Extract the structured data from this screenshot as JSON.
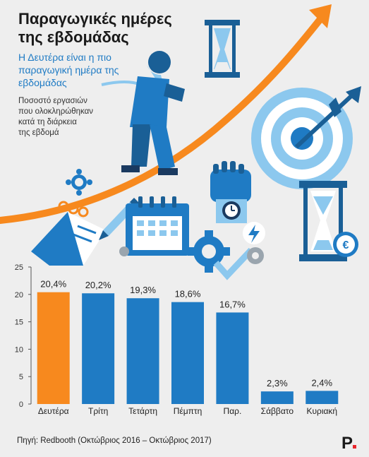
{
  "header": {
    "title_line1": "Παραγωγικές ημέρες",
    "title_line2": "της εβδομάδας",
    "subtitle_line1": "Η Δευτέρα είναι η πιο",
    "subtitle_line2": "παραγωγική ημέρα της",
    "subtitle_line3": "εβδομάδας",
    "desc_line1": "Ποσοστό εργασιών",
    "desc_line2": "που ολοκληρώθηκαν",
    "desc_line3": "κατά τη διάρκεια",
    "desc_line4": "της εβδομά"
  },
  "footer": {
    "source": "Πηγή: Redbooth (Οκτώβριος 2016 – Οκτώβριος 2017)",
    "logo_letter": "P"
  },
  "colors": {
    "highlight": "#f7891e",
    "bar": "#1f7bc4",
    "light_blue": "#8cc8ee",
    "dark_blue": "#1a5f96",
    "gray_icon": "#9aa5ae"
  },
  "illustration": {
    "icons": [
      "hourglass-icon",
      "runner-figure",
      "gear-icon",
      "notepad-icon",
      "pencil-icon",
      "calendar-icon",
      "watch-icon",
      "lightning-icon",
      "checkmark-icon",
      "target-icon",
      "arrow-icon",
      "euro-coin-icon"
    ],
    "euro_symbol": "€"
  },
  "chart_data": {
    "type": "bar",
    "categories": [
      "Δευτέρα",
      "Τρίτη",
      "Τετάρτη",
      "Πέμπτη",
      "Παρ.",
      "Σάββατο",
      "Κυριακή"
    ],
    "values": [
      20.4,
      20.2,
      19.3,
      18.6,
      16.7,
      2.3,
      2.4
    ],
    "value_labels": [
      "20,4%",
      "20,2%",
      "19,3%",
      "18,6%",
      "16,7%",
      "2,3%",
      "2,4%"
    ],
    "highlight_index": 0,
    "ylim": [
      0,
      25
    ],
    "yticks": [
      0,
      5,
      10,
      15,
      20,
      25
    ],
    "ytick_labels": [
      "0",
      "5",
      "10",
      "15",
      "20",
      "25"
    ],
    "grid": false
  }
}
